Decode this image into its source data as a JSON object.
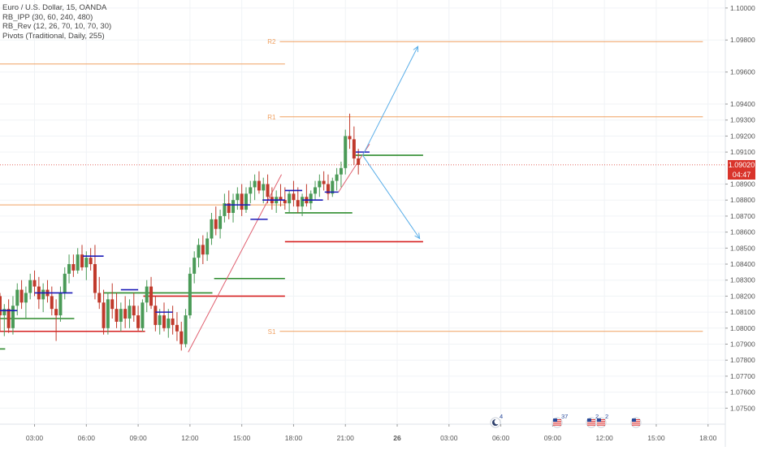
{
  "legend": {
    "symbol": "Euro / U.S. Dollar, 15, OANDA",
    "ind1": "RB_IPP (30, 60, 240, 480)",
    "ind2": "RB_Rev (12, 26, 70, 10, 70, 30)",
    "ind3": "Pivots (Traditional, Daily, 255)"
  },
  "price_tag": {
    "price": "1.09020",
    "countdown": "04:47"
  },
  "colors": {
    "up": "#4a9a57",
    "down": "#c0392b",
    "pivot": "#f0a060",
    "blue_level": "#1a1ab8",
    "green_level": "#2e8b2e",
    "red_level": "#d62020",
    "arrow": "#5aaee8",
    "trend": "#e06070",
    "axis_text": "#555555",
    "price_tag": "#d9342b"
  },
  "event_markers": [
    {
      "name": "moon-event-icon",
      "count": "4"
    },
    {
      "name": "us-flag-event-icon",
      "count": "37"
    },
    {
      "name": "us-flag-event-icon",
      "count": "2"
    },
    {
      "name": "us-flag-event-icon",
      "count": "2"
    },
    {
      "name": "us-flag-event-icon",
      "count": ""
    }
  ],
  "chart_data": {
    "type": "candlestick",
    "title": "Euro / U.S. Dollar, 15, OANDA",
    "ylim": [
      1.074,
      1.1005
    ],
    "y_ticks": [
      "1.10000",
      "1.09800",
      "1.09600",
      "1.09400",
      "1.09300",
      "1.09200",
      "1.09100",
      "1.08900",
      "1.08800",
      "1.08700",
      "1.08600",
      "1.08500",
      "1.08400",
      "1.08300",
      "1.08200",
      "1.08100",
      "1.08000",
      "1.07900",
      "1.07800",
      "1.07700",
      "1.07600",
      "1.07500"
    ],
    "x_ticks": [
      "03:00",
      "06:00",
      "09:00",
      "12:00",
      "15:00",
      "18:00",
      "21:00",
      "26",
      "03:00",
      "06:00",
      "09:00",
      "12:00",
      "15:00",
      "18:00"
    ],
    "x_index_range": [
      0,
      42
    ],
    "x_tick_index": [
      2,
      5,
      8,
      11,
      14,
      17,
      20,
      23,
      26,
      29,
      32,
      35,
      38,
      41
    ],
    "candles": [
      [
        0.0,
        1.082,
        1.0822,
        1.0798,
        1.0808
      ],
      [
        0.25,
        1.0808,
        1.0815,
        1.0795,
        1.0812
      ],
      [
        0.5,
        1.0812,
        1.0818,
        1.0797,
        1.08
      ],
      [
        0.75,
        1.08,
        1.082,
        1.0796,
        1.0814
      ],
      [
        1.0,
        1.0814,
        1.0828,
        1.0808,
        1.0824
      ],
      [
        1.25,
        1.0824,
        1.083,
        1.0812,
        1.0816
      ],
      [
        1.5,
        1.0816,
        1.0826,
        1.0806,
        1.0822
      ],
      [
        1.75,
        1.0822,
        1.0834,
        1.0818,
        1.083
      ],
      [
        2.0,
        1.083,
        1.0836,
        1.082,
        1.0826
      ],
      [
        2.25,
        1.0826,
        1.0832,
        1.0812,
        1.0818
      ],
      [
        2.5,
        1.0818,
        1.0828,
        1.081,
        1.0824
      ],
      [
        2.75,
        1.0824,
        1.083,
        1.0816,
        1.082
      ],
      [
        3.0,
        1.082,
        1.0826,
        1.0808,
        1.0812
      ],
      [
        3.25,
        1.0812,
        1.0818,
        1.0792,
        1.0808
      ],
      [
        3.5,
        1.0808,
        1.0826,
        1.0804,
        1.0822
      ],
      [
        3.75,
        1.0822,
        1.0838,
        1.0818,
        1.0834
      ],
      [
        4.0,
        1.0834,
        1.0846,
        1.0828,
        1.084
      ],
      [
        4.25,
        1.084,
        1.0846,
        1.0832,
        1.0836
      ],
      [
        4.5,
        1.0836,
        1.085,
        1.0834,
        1.0846
      ],
      [
        4.75,
        1.0846,
        1.0852,
        1.0836,
        1.0838
      ],
      [
        5.0,
        1.0838,
        1.0848,
        1.083,
        1.0844
      ],
      [
        5.25,
        1.0844,
        1.085,
        1.0836,
        1.084
      ],
      [
        5.5,
        1.084,
        1.0852,
        1.0818,
        1.0822
      ],
      [
        5.75,
        1.0822,
        1.0832,
        1.0812,
        1.0816
      ],
      [
        6.0,
        1.0816,
        1.0824,
        1.0796,
        1.08
      ],
      [
        6.25,
        1.08,
        1.0822,
        1.0796,
        1.0818
      ],
      [
        6.5,
        1.0818,
        1.0828,
        1.0806,
        1.0812
      ],
      [
        6.75,
        1.0812,
        1.0822,
        1.08,
        1.0804
      ],
      [
        7.0,
        1.0804,
        1.0816,
        1.0798,
        1.0812
      ],
      [
        7.25,
        1.0812,
        1.082,
        1.08,
        1.0806
      ],
      [
        7.5,
        1.0806,
        1.0818,
        1.08,
        1.0814
      ],
      [
        7.75,
        1.0814,
        1.0822,
        1.0804,
        1.0808
      ],
      [
        8.0,
        1.0808,
        1.0814,
        1.0798,
        1.08
      ],
      [
        8.25,
        1.08,
        1.0818,
        1.0798,
        1.0816
      ],
      [
        8.5,
        1.0816,
        1.083,
        1.081,
        1.0826
      ],
      [
        8.75,
        1.0826,
        1.0832,
        1.0812,
        1.0814
      ],
      [
        9.0,
        1.0814,
        1.082,
        1.0798,
        1.0802
      ],
      [
        9.25,
        1.0802,
        1.0812,
        1.0796,
        1.0808
      ],
      [
        9.5,
        1.0808,
        1.0816,
        1.0798,
        1.08
      ],
      [
        9.75,
        1.08,
        1.0812,
        1.0794,
        1.0806
      ],
      [
        10.0,
        1.0806,
        1.0814,
        1.0796,
        1.0802
      ],
      [
        10.25,
        1.0802,
        1.081,
        1.0792,
        1.0798
      ],
      [
        10.5,
        1.0798,
        1.0804,
        1.0786,
        1.079
      ],
      [
        10.75,
        1.079,
        1.0812,
        1.0788,
        1.0808
      ],
      [
        11.0,
        1.0808,
        1.0838,
        1.0806,
        1.0834
      ],
      [
        11.25,
        1.0834,
        1.0848,
        1.0828,
        1.0844
      ],
      [
        11.5,
        1.0844,
        1.0856,
        1.0838,
        1.0852
      ],
      [
        11.75,
        1.0852,
        1.0858,
        1.084,
        1.0846
      ],
      [
        12.0,
        1.0846,
        1.086,
        1.0842,
        1.0856
      ],
      [
        12.25,
        1.0856,
        1.0872,
        1.0852,
        1.0868
      ],
      [
        12.5,
        1.0868,
        1.0876,
        1.0858,
        1.0862
      ],
      [
        12.75,
        1.0862,
        1.0874,
        1.0856,
        1.087
      ],
      [
        13.0,
        1.087,
        1.0884,
        1.0866,
        1.0878
      ],
      [
        13.25,
        1.0878,
        1.0886,
        1.0868,
        1.0872
      ],
      [
        13.5,
        1.0872,
        1.0884,
        1.0866,
        1.088
      ],
      [
        13.75,
        1.088,
        1.0888,
        1.0874,
        1.0884
      ],
      [
        14.0,
        1.0884,
        1.089,
        1.087,
        1.0874
      ],
      [
        14.25,
        1.0874,
        1.0888,
        1.0872,
        1.0884
      ],
      [
        14.5,
        1.0884,
        1.0892,
        1.0878,
        1.0888
      ],
      [
        14.75,
        1.0888,
        1.0896,
        1.088,
        1.0892
      ],
      [
        15.0,
        1.0892,
        1.0898,
        1.0884,
        1.0886
      ],
      [
        15.25,
        1.0886,
        1.0894,
        1.0878,
        1.089
      ],
      [
        15.5,
        1.089,
        1.0896,
        1.0878,
        1.0882
      ],
      [
        15.75,
        1.0882,
        1.0888,
        1.0874,
        1.0878
      ],
      [
        16.0,
        1.0878,
        1.0886,
        1.0872,
        1.0882
      ],
      [
        16.25,
        1.0882,
        1.089,
        1.0876,
        1.088
      ],
      [
        16.5,
        1.088,
        1.0888,
        1.0874,
        1.0878
      ],
      [
        16.75,
        1.0878,
        1.0886,
        1.0872,
        1.0884
      ],
      [
        17.0,
        1.0884,
        1.0892,
        1.0876,
        1.088
      ],
      [
        17.25,
        1.088,
        1.0888,
        1.0872,
        1.0876
      ],
      [
        17.5,
        1.0876,
        1.0884,
        1.087,
        1.0882
      ],
      [
        17.75,
        1.0882,
        1.089,
        1.0876,
        1.0878
      ],
      [
        18.0,
        1.0878,
        1.0886,
        1.0874,
        1.0884
      ],
      [
        18.25,
        1.0884,
        1.0892,
        1.088,
        1.0888
      ],
      [
        18.5,
        1.0888,
        1.0896,
        1.0882,
        1.0892
      ],
      [
        18.75,
        1.0892,
        1.0898,
        1.0886,
        1.089
      ],
      [
        19.0,
        1.089,
        1.0896,
        1.088,
        1.0884
      ],
      [
        19.25,
        1.0884,
        1.0894,
        1.0882,
        1.0892
      ],
      [
        19.5,
        1.0892,
        1.09,
        1.0886,
        1.0896
      ],
      [
        19.75,
        1.0896,
        1.0904,
        1.0888,
        1.09
      ],
      [
        20.0,
        1.09,
        1.0924,
        1.0896,
        1.092
      ],
      [
        20.25,
        1.092,
        1.0934,
        1.0912,
        1.0918
      ],
      [
        20.5,
        1.0918,
        1.0926,
        1.0902,
        1.0906
      ],
      [
        20.75,
        1.0906,
        1.0912,
        1.0896,
        1.0902
      ]
    ],
    "pivot_levels": [
      {
        "label": "R2",
        "price": 1.0979,
        "x_start": 16.2,
        "x_end": 40.7
      },
      {
        "label": "R1",
        "price": 1.0932,
        "x_start": 16.2,
        "x_end": 40.7
      },
      {
        "label": "S1",
        "price": 1.0798,
        "x_start": 16.2,
        "x_end": 40.7
      },
      {
        "label": "",
        "price": 1.0965,
        "x_start": 0,
        "x_end": 16.5
      },
      {
        "label": "",
        "price": 1.0877,
        "x_start": 0,
        "x_end": 16.5
      }
    ],
    "blue_levels": [
      {
        "price": 1.0811,
        "x_start": 0.0,
        "x_end": 1.0
      },
      {
        "price": 1.0822,
        "x_start": 2.0,
        "x_end": 4.2
      },
      {
        "price": 1.0845,
        "x_start": 4.8,
        "x_end": 6.0
      },
      {
        "price": 1.0824,
        "x_start": 7.0,
        "x_end": 8.0
      },
      {
        "price": 1.081,
        "x_start": 9.0,
        "x_end": 10.0
      },
      {
        "price": 1.0877,
        "x_start": 13.0,
        "x_end": 14.5
      },
      {
        "price": 1.0868,
        "x_start": 14.5,
        "x_end": 15.5
      },
      {
        "price": 1.088,
        "x_start": 15.2,
        "x_end": 16.5
      },
      {
        "price": 1.0886,
        "x_start": 16.5,
        "x_end": 17.5
      },
      {
        "price": 1.088,
        "x_start": 17.5,
        "x_end": 18.7
      },
      {
        "price": 1.0885,
        "x_start": 18.8,
        "x_end": 19.6
      },
      {
        "price": 1.091,
        "x_start": 20.6,
        "x_end": 21.4
      }
    ],
    "green_levels": [
      {
        "price": 1.0787,
        "x_start": 0.0,
        "x_end": 0.3
      },
      {
        "price": 1.0806,
        "x_start": 0.0,
        "x_end": 4.3
      },
      {
        "price": 1.0822,
        "x_start": 6.0,
        "x_end": 12.3
      },
      {
        "price": 1.0831,
        "x_start": 12.4,
        "x_end": 16.5
      },
      {
        "price": 1.0872,
        "x_start": 16.5,
        "x_end": 20.4
      },
      {
        "price": 1.0908,
        "x_start": 20.6,
        "x_end": 24.5
      }
    ],
    "red_levels": [
      {
        "price": 1.0798,
        "x_start": 0.0,
        "x_end": 8.4
      },
      {
        "price": 1.082,
        "x_start": 8.3,
        "x_end": 16.5
      },
      {
        "price": 1.0854,
        "x_start": 16.5,
        "x_end": 24.5
      }
    ],
    "trend_lines": [
      {
        "x1": 10.9,
        "y1": 1.0785,
        "x2": 16.3,
        "y2": 1.0896
      },
      {
        "x1": 19.6,
        "y1": 1.0885,
        "x2": 21.4,
        "y2": 1.0915
      }
    ],
    "arrows": [
      {
        "x1": 21.0,
        "y1": 1.0908,
        "x2": 24.2,
        "y2": 1.0976
      },
      {
        "x1": 21.0,
        "y1": 1.0908,
        "x2": 24.3,
        "y2": 1.0856
      }
    ],
    "current_price": 1.0902
  }
}
